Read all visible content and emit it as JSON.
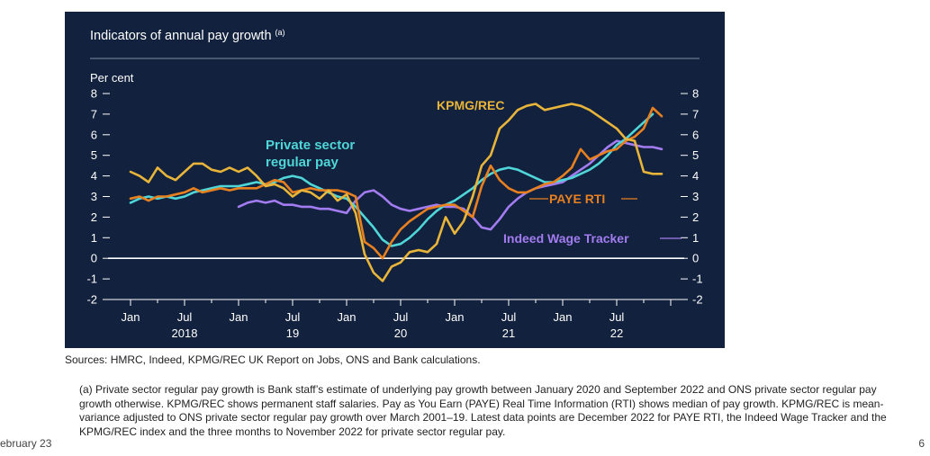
{
  "colors": {
    "panel_bg": "#12213d",
    "text": "#ffffff",
    "kpmg": "#e8b53a",
    "paye": "#e8801f",
    "private": "#4fd6d8",
    "indeed": "#a27cf0",
    "grid": "#3b4a66"
  },
  "chart_data": {
    "type": "line",
    "title": "Indicators of annual pay growth",
    "title_sup": "(a)",
    "ylabel": "Per cent",
    "ylim": [
      -2,
      8
    ],
    "yticks": [
      -2,
      -1,
      0,
      1,
      2,
      3,
      4,
      5,
      6,
      7,
      8
    ],
    "xlim": [
      "2017-12",
      "2023-02"
    ],
    "x_tick_labels": [
      {
        "date": "2018-01",
        "label": "Jan",
        "year": ""
      },
      {
        "date": "2018-07",
        "label": "Jul",
        "year": "2018"
      },
      {
        "date": "2019-01",
        "label": "Jan",
        "year": ""
      },
      {
        "date": "2019-07",
        "label": "Jul",
        "year": "19"
      },
      {
        "date": "2020-01",
        "label": "Jan",
        "year": ""
      },
      {
        "date": "2020-07",
        "label": "Jul",
        "year": "20"
      },
      {
        "date": "2021-01",
        "label": "Jan",
        "year": ""
      },
      {
        "date": "2021-07",
        "label": "Jul",
        "year": "21"
      },
      {
        "date": "2022-01",
        "label": "Jan",
        "year": ""
      },
      {
        "date": "2022-07",
        "label": "Jul",
        "year": "22"
      }
    ],
    "zero_line": true,
    "series": [
      {
        "name": "KPMG/REC",
        "color": "#e8b53a",
        "data": [
          [
            "2018-01",
            4.2
          ],
          [
            "2018-02",
            4.0
          ],
          [
            "2018-03",
            3.7
          ],
          [
            "2018-04",
            4.4
          ],
          [
            "2018-05",
            4.0
          ],
          [
            "2018-06",
            3.8
          ],
          [
            "2018-07",
            4.2
          ],
          [
            "2018-08",
            4.6
          ],
          [
            "2018-09",
            4.6
          ],
          [
            "2018-10",
            4.3
          ],
          [
            "2018-11",
            4.2
          ],
          [
            "2018-12",
            4.4
          ],
          [
            "2019-01",
            4.2
          ],
          [
            "2019-02",
            4.4
          ],
          [
            "2019-03",
            4.0
          ],
          [
            "2019-04",
            3.5
          ],
          [
            "2019-05",
            3.6
          ],
          [
            "2019-06",
            3.4
          ],
          [
            "2019-07",
            3.0
          ],
          [
            "2019-08",
            3.3
          ],
          [
            "2019-09",
            3.2
          ],
          [
            "2019-10",
            2.9
          ],
          [
            "2019-11",
            3.3
          ],
          [
            "2019-12",
            2.8
          ],
          [
            "2020-01",
            3.1
          ],
          [
            "2020-02",
            2.2
          ],
          [
            "2020-03",
            0.2
          ],
          [
            "2020-04",
            -0.7
          ],
          [
            "2020-05",
            -1.1
          ],
          [
            "2020-06",
            -0.4
          ],
          [
            "2020-07",
            -0.2
          ],
          [
            "2020-08",
            0.3
          ],
          [
            "2020-09",
            0.4
          ],
          [
            "2020-10",
            0.3
          ],
          [
            "2020-11",
            0.7
          ],
          [
            "2020-12",
            2.0
          ],
          [
            "2021-01",
            1.2
          ],
          [
            "2021-02",
            1.8
          ],
          [
            "2021-03",
            3.0
          ],
          [
            "2021-04",
            4.5
          ],
          [
            "2021-05",
            5.0
          ],
          [
            "2021-06",
            6.3
          ],
          [
            "2021-07",
            6.7
          ],
          [
            "2021-08",
            7.2
          ],
          [
            "2021-09",
            7.4
          ],
          [
            "2021-10",
            7.5
          ],
          [
            "2021-11",
            7.2
          ],
          [
            "2021-12",
            7.3
          ],
          [
            "2022-01",
            7.4
          ],
          [
            "2022-02",
            7.5
          ],
          [
            "2022-03",
            7.4
          ],
          [
            "2022-04",
            7.2
          ],
          [
            "2022-05",
            6.9
          ],
          [
            "2022-06",
            6.6
          ],
          [
            "2022-07",
            6.3
          ],
          [
            "2022-08",
            5.8
          ],
          [
            "2022-09",
            5.7
          ],
          [
            "2022-10",
            4.2
          ],
          [
            "2022-11",
            4.1
          ],
          [
            "2022-12",
            4.1
          ]
        ]
      },
      {
        "name": "PAYE RTI",
        "color": "#e8801f",
        "data": [
          [
            "2018-01",
            2.9
          ],
          [
            "2018-02",
            3.0
          ],
          [
            "2018-03",
            2.8
          ],
          [
            "2018-04",
            3.0
          ],
          [
            "2018-05",
            3.0
          ],
          [
            "2018-06",
            3.1
          ],
          [
            "2018-07",
            3.2
          ],
          [
            "2018-08",
            3.4
          ],
          [
            "2018-09",
            3.2
          ],
          [
            "2018-10",
            3.3
          ],
          [
            "2018-11",
            3.4
          ],
          [
            "2018-12",
            3.3
          ],
          [
            "2019-01",
            3.4
          ],
          [
            "2019-02",
            3.4
          ],
          [
            "2019-03",
            3.4
          ],
          [
            "2019-04",
            3.6
          ],
          [
            "2019-05",
            3.8
          ],
          [
            "2019-06",
            3.7
          ],
          [
            "2019-07",
            3.2
          ],
          [
            "2019-08",
            3.3
          ],
          [
            "2019-09",
            3.4
          ],
          [
            "2019-10",
            3.3
          ],
          [
            "2019-11",
            3.3
          ],
          [
            "2019-12",
            3.3
          ],
          [
            "2020-01",
            3.2
          ],
          [
            "2020-02",
            3.0
          ],
          [
            "2020-03",
            0.8
          ],
          [
            "2020-04",
            0.5
          ],
          [
            "2020-05",
            0.0
          ],
          [
            "2020-06",
            0.8
          ],
          [
            "2020-07",
            1.4
          ],
          [
            "2020-08",
            1.8
          ],
          [
            "2020-09",
            2.1
          ],
          [
            "2020-10",
            2.4
          ],
          [
            "2020-11",
            2.5
          ],
          [
            "2020-12",
            2.6
          ],
          [
            "2021-01",
            2.6
          ],
          [
            "2021-02",
            2.3
          ],
          [
            "2021-03",
            2.0
          ],
          [
            "2021-04",
            3.5
          ],
          [
            "2021-05",
            4.5
          ],
          [
            "2021-06",
            3.8
          ],
          [
            "2021-07",
            3.4
          ],
          [
            "2021-08",
            3.2
          ],
          [
            "2021-09",
            3.2
          ],
          [
            "2021-10",
            3.4
          ],
          [
            "2021-11",
            3.6
          ],
          [
            "2021-12",
            3.7
          ],
          [
            "2022-01",
            4.0
          ],
          [
            "2022-02",
            4.4
          ],
          [
            "2022-03",
            5.3
          ],
          [
            "2022-04",
            4.8
          ],
          [
            "2022-05",
            5.0
          ],
          [
            "2022-06",
            5.2
          ],
          [
            "2022-07",
            5.3
          ],
          [
            "2022-08",
            5.7
          ],
          [
            "2022-09",
            5.9
          ],
          [
            "2022-10",
            6.3
          ],
          [
            "2022-11",
            7.3
          ],
          [
            "2022-12",
            6.9
          ]
        ]
      },
      {
        "name": "Private sector regular pay",
        "label_lines": [
          "Private sector",
          "regular pay"
        ],
        "color": "#4fd6d8",
        "data": [
          [
            "2018-01",
            2.7
          ],
          [
            "2018-02",
            2.9
          ],
          [
            "2018-03",
            3.0
          ],
          [
            "2018-04",
            2.9
          ],
          [
            "2018-05",
            3.0
          ],
          [
            "2018-06",
            2.9
          ],
          [
            "2018-07",
            3.0
          ],
          [
            "2018-08",
            3.2
          ],
          [
            "2018-09",
            3.3
          ],
          [
            "2018-10",
            3.4
          ],
          [
            "2018-11",
            3.5
          ],
          [
            "2018-12",
            3.5
          ],
          [
            "2019-01",
            3.5
          ],
          [
            "2019-02",
            3.6
          ],
          [
            "2019-03",
            3.7
          ],
          [
            "2019-04",
            3.6
          ],
          [
            "2019-05",
            3.7
          ],
          [
            "2019-06",
            3.9
          ],
          [
            "2019-07",
            4.0
          ],
          [
            "2019-08",
            3.9
          ],
          [
            "2019-09",
            3.6
          ],
          [
            "2019-10",
            3.4
          ],
          [
            "2019-11",
            3.2
          ],
          [
            "2019-12",
            3.0
          ],
          [
            "2020-01",
            2.9
          ],
          [
            "2020-02",
            2.5
          ],
          [
            "2020-03",
            2.0
          ],
          [
            "2020-04",
            1.5
          ],
          [
            "2020-05",
            0.9
          ],
          [
            "2020-06",
            0.6
          ],
          [
            "2020-07",
            0.7
          ],
          [
            "2020-08",
            1.0
          ],
          [
            "2020-09",
            1.4
          ],
          [
            "2020-10",
            1.9
          ],
          [
            "2020-11",
            2.3
          ],
          [
            "2020-12",
            2.6
          ],
          [
            "2021-01",
            2.8
          ],
          [
            "2021-02",
            3.1
          ],
          [
            "2021-03",
            3.4
          ],
          [
            "2021-04",
            3.8
          ],
          [
            "2021-05",
            4.1
          ],
          [
            "2021-06",
            4.3
          ],
          [
            "2021-07",
            4.4
          ],
          [
            "2021-08",
            4.3
          ],
          [
            "2021-09",
            4.1
          ],
          [
            "2021-10",
            3.9
          ],
          [
            "2021-11",
            3.7
          ],
          [
            "2021-12",
            3.7
          ],
          [
            "2022-01",
            3.8
          ],
          [
            "2022-02",
            3.9
          ],
          [
            "2022-03",
            4.1
          ],
          [
            "2022-04",
            4.3
          ],
          [
            "2022-05",
            4.6
          ],
          [
            "2022-06",
            5.0
          ],
          [
            "2022-07",
            5.5
          ],
          [
            "2022-08",
            5.8
          ],
          [
            "2022-09",
            6.2
          ],
          [
            "2022-10",
            6.6
          ],
          [
            "2022-11",
            7.0
          ]
        ]
      },
      {
        "name": "Indeed Wage Tracker",
        "color": "#a27cf0",
        "data": [
          [
            "2019-01",
            2.5
          ],
          [
            "2019-02",
            2.7
          ],
          [
            "2019-03",
            2.8
          ],
          [
            "2019-04",
            2.7
          ],
          [
            "2019-05",
            2.8
          ],
          [
            "2019-06",
            2.6
          ],
          [
            "2019-07",
            2.6
          ],
          [
            "2019-08",
            2.5
          ],
          [
            "2019-09",
            2.5
          ],
          [
            "2019-10",
            2.4
          ],
          [
            "2019-11",
            2.4
          ],
          [
            "2019-12",
            2.3
          ],
          [
            "2020-01",
            2.2
          ],
          [
            "2020-02",
            2.8
          ],
          [
            "2020-03",
            3.2
          ],
          [
            "2020-04",
            3.3
          ],
          [
            "2020-05",
            3.0
          ],
          [
            "2020-06",
            2.6
          ],
          [
            "2020-07",
            2.4
          ],
          [
            "2020-08",
            2.3
          ],
          [
            "2020-09",
            2.4
          ],
          [
            "2020-10",
            2.5
          ],
          [
            "2020-11",
            2.6
          ],
          [
            "2020-12",
            2.5
          ],
          [
            "2021-01",
            2.5
          ],
          [
            "2021-02",
            2.4
          ],
          [
            "2021-03",
            2.0
          ],
          [
            "2021-04",
            1.5
          ],
          [
            "2021-05",
            1.4
          ],
          [
            "2021-06",
            1.9
          ],
          [
            "2021-07",
            2.5
          ],
          [
            "2021-08",
            2.9
          ],
          [
            "2021-09",
            3.2
          ],
          [
            "2021-10",
            3.4
          ],
          [
            "2021-11",
            3.5
          ],
          [
            "2021-12",
            3.6
          ],
          [
            "2022-01",
            3.7
          ],
          [
            "2022-02",
            4.0
          ],
          [
            "2022-03",
            4.3
          ],
          [
            "2022-04",
            4.6
          ],
          [
            "2022-05",
            5.0
          ],
          [
            "2022-06",
            5.4
          ],
          [
            "2022-07",
            5.7
          ],
          [
            "2022-08",
            5.6
          ],
          [
            "2022-09",
            5.5
          ],
          [
            "2022-10",
            5.4
          ],
          [
            "2022-11",
            5.4
          ],
          [
            "2022-12",
            5.3
          ]
        ]
      }
    ]
  },
  "text": {
    "sources": "Sources: HMRC, Indeed, KPMG/REC UK Report on Jobs, ONS and Bank calculations.",
    "footnote": "(a) Private sector regular pay growth is Bank staff’s estimate of underlying pay growth between January 2020 and September 2022 and ONS private sector regular pay growth otherwise. KPMG/REC shows permanent staff salaries. Pay as You Earn (PAYE) Real Time Information (RTI) shows median of pay growth. KPMG/REC is mean-variance adjusted to ONS private sector regular pay growth over March 2001–19. Latest data points are December 2022 for PAYE RTI, the Indeed Wage Tracker and the KPMG/REC index and the three months to November 2022 for private sector regular pay.",
    "date_left": "ebruary 23",
    "page_number": "6"
  }
}
